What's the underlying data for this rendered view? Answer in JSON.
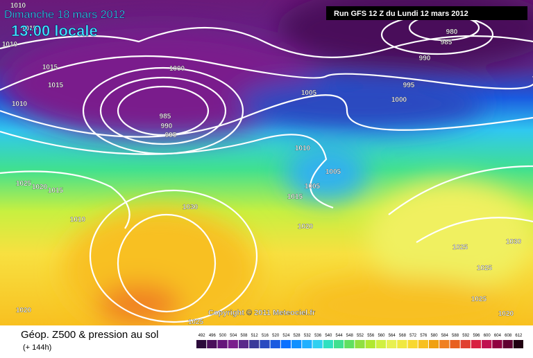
{
  "header": {
    "date": "Dimanche 18 mars 2012",
    "time": "13:00 locale",
    "run": "Run GFS 12 Z du Lundi 12 mars 2012"
  },
  "map": {
    "copyright": "Copyright © 2011 Meteociel.fr",
    "isobar_labels": [
      "1010",
      "1015",
      "1015",
      "1015",
      "1010",
      "1000",
      "985",
      "990",
      "995",
      "1005",
      "1010",
      "1005",
      "1005",
      "1015",
      "1020",
      "1025",
      "1020",
      "1015",
      "1010",
      "1030",
      "1020",
      "1025",
      "980",
      "985",
      "990",
      "995",
      "1000",
      "1025",
      "1030",
      "1025",
      "1025",
      "1020",
      "1010"
    ]
  },
  "footer": {
    "title": "Géop. Z500 & pression au sol",
    "lead": "(+ 144h)",
    "scale_values": [
      492,
      496,
      500,
      504,
      508,
      512,
      516,
      520,
      524,
      528,
      532,
      536,
      540,
      544,
      548,
      552,
      556,
      560,
      564,
      568,
      572,
      576,
      580,
      584,
      588,
      592,
      596,
      600,
      604,
      608,
      612
    ],
    "scale_colors": [
      "#2b0a3a",
      "#4a0f5a",
      "#65157a",
      "#7a1e8c",
      "#5a2a8a",
      "#3a3a9a",
      "#2a4ac0",
      "#1a5ae0",
      "#0a70ff",
      "#1090ff",
      "#20b0ff",
      "#30d0f0",
      "#30e0c0",
      "#40e090",
      "#60e060",
      "#90e040",
      "#b0e830",
      "#d0f040",
      "#e8f050",
      "#f0e840",
      "#f8d830",
      "#f8c020",
      "#f0a010",
      "#f08020",
      "#e86020",
      "#e04030",
      "#d82040",
      "#c01050",
      "#900040",
      "#600030",
      "#200010"
    ]
  }
}
